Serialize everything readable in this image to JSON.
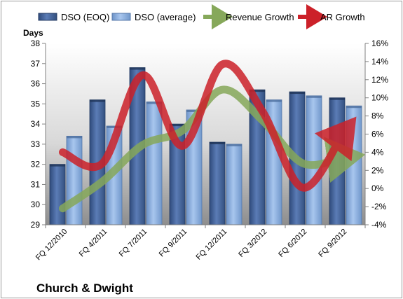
{
  "chart_data": {
    "type": "bar",
    "title": "",
    "company_label": "Church & Dwight",
    "y_axis_left": {
      "label": "Days",
      "min": 29,
      "max": 38,
      "ticks": [
        29,
        30,
        31,
        32,
        33,
        34,
        35,
        36,
        37,
        38
      ]
    },
    "y_axis_right": {
      "min": -4,
      "max": 16,
      "ticks": [
        "-4%",
        "-2%",
        "0%",
        "2%",
        "4%",
        "6%",
        "8%",
        "10%",
        "12%",
        "14%",
        "16%"
      ],
      "tick_values": [
        -4,
        -2,
        0,
        2,
        4,
        6,
        8,
        10,
        12,
        14,
        16
      ]
    },
    "categories": [
      "FQ 12/2010",
      "FQ 4/2011",
      "FQ 7/2011",
      "FQ 9/2011",
      "FQ 12/2011",
      "FQ 3/2012",
      "FQ 6/2012",
      "FQ 9/2012"
    ],
    "series": [
      {
        "name": "DSO (EOQ)",
        "type": "bar",
        "axis": "left",
        "color": "#4f6fa8",
        "values": [
          32.0,
          35.2,
          36.8,
          34.0,
          33.1,
          35.7,
          35.6,
          35.3
        ]
      },
      {
        "name": "DSO (average)",
        "type": "bar",
        "axis": "left",
        "color": "#8fb3e0",
        "values": [
          33.4,
          33.9,
          35.1,
          34.7,
          33.0,
          35.2,
          35.4,
          34.9
        ]
      },
      {
        "name": "Revenue Growth",
        "type": "line",
        "axis": "right",
        "color": "#86a85a",
        "values": [
          -2.2,
          0.8,
          4.8,
          6.4,
          10.9,
          7.5,
          2.8,
          3.4
        ]
      },
      {
        "name": "AR Growth",
        "type": "line",
        "axis": "right",
        "color": "#cc2129",
        "values": [
          4.0,
          2.8,
          12.5,
          4.7,
          13.7,
          8.5,
          0.1,
          5.9
        ]
      }
    ],
    "legend_position": "top",
    "grid": false
  }
}
